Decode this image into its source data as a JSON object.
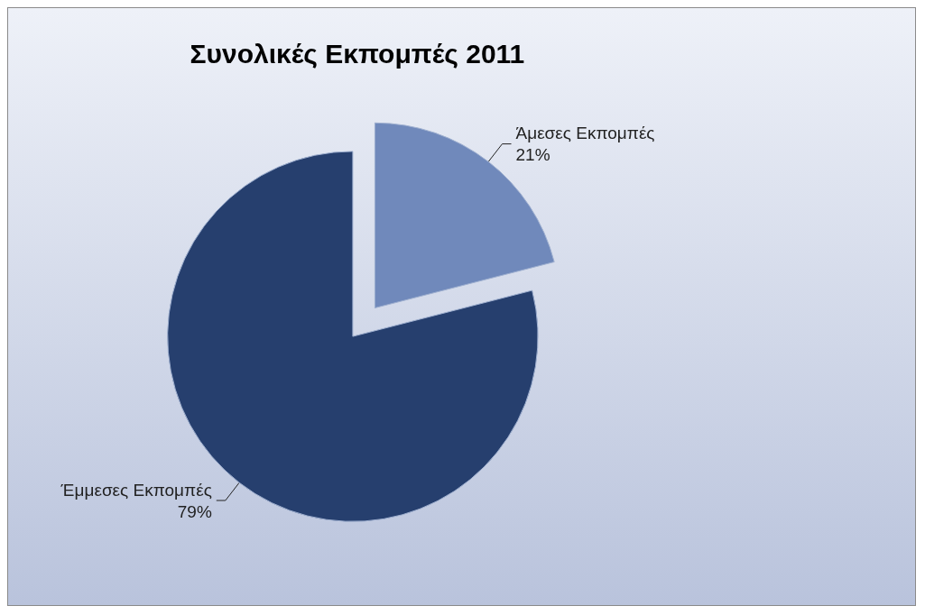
{
  "chart_data": {
    "type": "pie",
    "title": "Συνολικές Εκπομπές 2011",
    "categories": [
      "Άμεσες Εκπομπές",
      "Έμμεσες Εκπομπές"
    ],
    "values": [
      21,
      79
    ],
    "value_labels": [
      "21%",
      "79%"
    ],
    "colors": [
      "#7089bb",
      "#263f6e"
    ],
    "legend": false
  }
}
